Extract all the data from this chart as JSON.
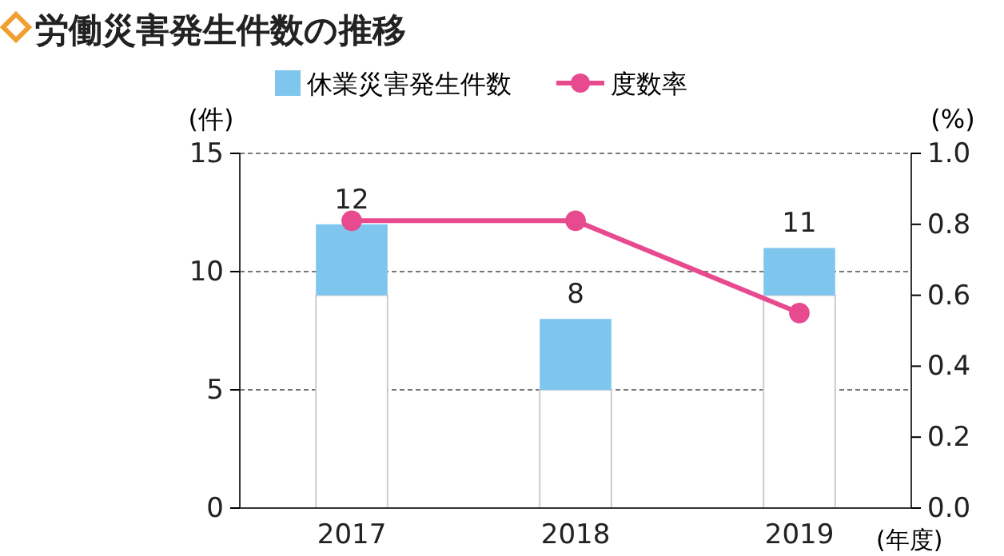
{
  "chart_data": {
    "type": "bar",
    "title": "労働災害発生件数の推移",
    "xlabel": "(年度)",
    "ylabel": "(件)",
    "y2label": "(%)",
    "categories": [
      "2017",
      "2018",
      "2019"
    ],
    "series": [
      {
        "color": "#ffffff",
        "values": [
          9,
          5,
          9
        ]
      },
      {
        "name": "休業災害発生件数",
        "color": "#7fc6ee",
        "values": [
          3,
          3,
          2
        ]
      },
      {
        "name": "度数率",
        "type": "line",
        "axis": "y2",
        "color": "#e84a8f",
        "values": [
          0.81,
          0.81,
          0.55
        ]
      }
    ],
    "stacked": true,
    "totals": [
      "12",
      "8",
      "11"
    ],
    "ylim": [
      0,
      15
    ],
    "yticks": [
      0,
      5,
      10,
      15
    ],
    "y2lim": [
      0,
      1.0
    ],
    "y2ticks": [
      {
        "value": 0,
        "label": "0.0"
      },
      0.2,
      0.4,
      0.6,
      0.8,
      {
        "value": 1,
        "label": "1.0"
      }
    ],
    "grid": "y",
    "legend": "top",
    "marker": "circle",
    "line_style": "solid"
  }
}
